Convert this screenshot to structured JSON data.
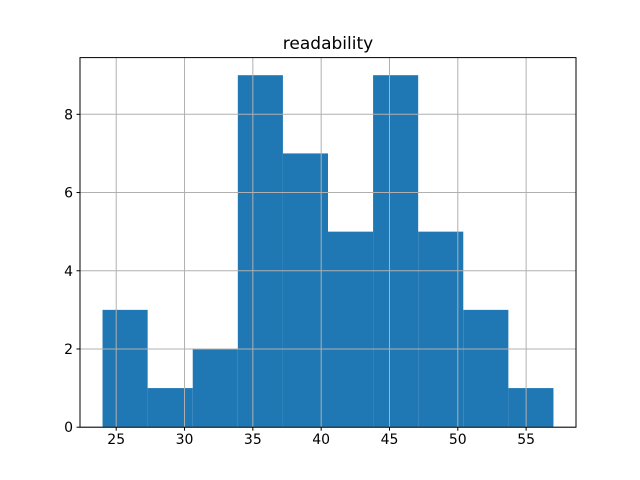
{
  "figure": {
    "background": "#ffffff",
    "frame_color": "#000000",
    "text_color": "#000000"
  },
  "chart_data": {
    "type": "bar",
    "subtype": "histogram",
    "title": "readability",
    "xlabel": "",
    "ylabel": "",
    "bar_color": "#1f77b4",
    "grid": true,
    "grid_color": "#b0b0b0",
    "grid_above_bars": true,
    "bin_edges": [
      24.0,
      27.3,
      30.6,
      33.9,
      37.2,
      40.5,
      43.8,
      47.1,
      50.4,
      53.7,
      57.0
    ],
    "counts": [
      3,
      1,
      2,
      9,
      7,
      5,
      9,
      5,
      3,
      1
    ],
    "xlim": [
      22.35,
      58.65
    ],
    "ylim": [
      0,
      9.45
    ],
    "xticks": [
      25,
      30,
      35,
      40,
      45,
      50,
      55
    ],
    "yticks": [
      0,
      2,
      4,
      6,
      8
    ],
    "legend": null
  }
}
